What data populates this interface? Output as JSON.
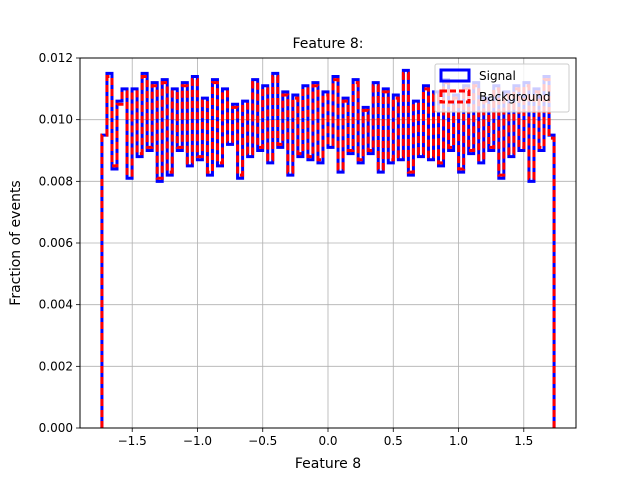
{
  "chart_data": {
    "type": "line",
    "title": "Feature 8:",
    "xlabel": "Feature 8",
    "ylabel": "Fraction of events",
    "xlim": [
      -1.9,
      1.9
    ],
    "ylim": [
      0.0,
      0.012
    ],
    "grid": true,
    "legend_position": "top-right",
    "x_ticks": [
      {
        "value": -1.5,
        "label": "−1.5"
      },
      {
        "value": -1.0,
        "label": "−1.0"
      },
      {
        "value": -0.5,
        "label": "−0.5"
      },
      {
        "value": 0.0,
        "label": "0.0"
      },
      {
        "value": 0.5,
        "label": "0.5"
      },
      {
        "value": 1.0,
        "label": "1.0"
      },
      {
        "value": 1.5,
        "label": "1.5"
      }
    ],
    "y_ticks": [
      {
        "value": 0.0,
        "label": "0.000"
      },
      {
        "value": 0.002,
        "label": "0.002"
      },
      {
        "value": 0.004,
        "label": "0.004"
      },
      {
        "value": 0.006,
        "label": "0.006"
      },
      {
        "value": 0.008,
        "label": "0.008"
      },
      {
        "value": 0.01,
        "label": "0.010"
      },
      {
        "value": 0.012,
        "label": "0.012"
      }
    ],
    "bin_range": [
      -1.732,
      1.732
    ],
    "series": [
      {
        "name": "Signal",
        "color": "#0000ff",
        "style": "step-solid",
        "values": [
          0.0095,
          0.0115,
          0.0084,
          0.0106,
          0.011,
          0.0081,
          0.011,
          0.0088,
          0.0115,
          0.009,
          0.0112,
          0.008,
          0.0113,
          0.0082,
          0.011,
          0.009,
          0.0112,
          0.0085,
          0.0114,
          0.0087,
          0.0107,
          0.0082,
          0.0113,
          0.0085,
          0.011,
          0.0092,
          0.0105,
          0.0081,
          0.0106,
          0.0088,
          0.0113,
          0.009,
          0.0111,
          0.0086,
          0.0115,
          0.0091,
          0.0109,
          0.0082,
          0.0108,
          0.0088,
          0.0111,
          0.0087,
          0.0112,
          0.0086,
          0.0109,
          0.0091,
          0.0114,
          0.0083,
          0.0107,
          0.0089,
          0.0113,
          0.0086,
          0.0104,
          0.0089,
          0.0112,
          0.0083,
          0.011,
          0.0086,
          0.0108,
          0.0087,
          0.0116,
          0.0082,
          0.0106,
          0.0088,
          0.0111,
          0.0087,
          0.0109,
          0.0085,
          0.0113,
          0.009,
          0.0108,
          0.0083,
          0.0111,
          0.0089,
          0.0112,
          0.0086,
          0.0107,
          0.009,
          0.0111,
          0.0081,
          0.0109,
          0.0088,
          0.0111,
          0.009,
          0.0112,
          0.008,
          0.011,
          0.009,
          0.0114,
          0.0095
        ],
        "values_note_first_last": "edge bins shown at 0.0095"
      },
      {
        "name": "Background",
        "color": "#ff0000",
        "style": "step-dashed",
        "values": [
          0.0095,
          0.0114,
          0.0085,
          0.0105,
          0.0109,
          0.0082,
          0.0109,
          0.0089,
          0.0114,
          0.0091,
          0.0111,
          0.0081,
          0.0112,
          0.0083,
          0.0109,
          0.0091,
          0.0111,
          0.0086,
          0.0113,
          0.0088,
          0.0106,
          0.0083,
          0.0112,
          0.0086,
          0.0109,
          0.0093,
          0.0104,
          0.0082,
          0.0105,
          0.0089,
          0.0112,
          0.0091,
          0.011,
          0.0087,
          0.0114,
          0.0092,
          0.0108,
          0.0083,
          0.0107,
          0.0089,
          0.011,
          0.0088,
          0.0111,
          0.0087,
          0.0108,
          0.0092,
          0.0113,
          0.0084,
          0.0106,
          0.009,
          0.0112,
          0.0087,
          0.0103,
          0.009,
          0.0111,
          0.0084,
          0.0109,
          0.0087,
          0.0107,
          0.0088,
          0.0115,
          0.0083,
          0.0105,
          0.0089,
          0.011,
          0.0088,
          0.0108,
          0.0086,
          0.0112,
          0.0091,
          0.0107,
          0.0084,
          0.011,
          0.009,
          0.0111,
          0.0087,
          0.0106,
          0.0091,
          0.011,
          0.0082,
          0.0108,
          0.0089,
          0.011,
          0.0091,
          0.0111,
          0.0081,
          0.0109,
          0.0091,
          0.0113,
          0.0094
        ]
      }
    ]
  }
}
